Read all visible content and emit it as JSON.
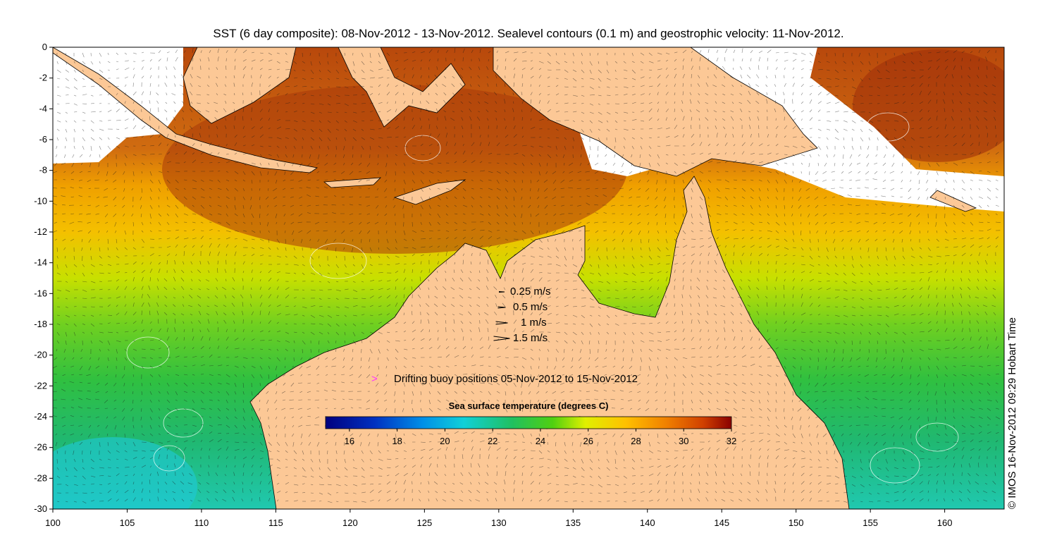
{
  "title": "SST (6 day composite): 08-Nov-2012 - 13-Nov-2012. Sealevel contours (0.1 m) and geostrophic velocity: 11-Nov-2012.",
  "x_axis": {
    "ticks": [
      "100",
      "105",
      "110",
      "115",
      "120",
      "125",
      "130",
      "135",
      "140",
      "145",
      "150",
      "155",
      "160"
    ],
    "range": [
      100,
      164
    ]
  },
  "y_axis": {
    "ticks": [
      "0",
      "-2",
      "-4",
      "-6",
      "-8",
      "-10",
      "-12",
      "-14",
      "-16",
      "-18",
      "-20",
      "-22",
      "-24",
      "-26",
      "-28",
      "-30"
    ],
    "range": [
      -30,
      0
    ]
  },
  "velocity_legend": [
    {
      "label": "0.25 m/s",
      "speed": 0.25
    },
    {
      "label": "0.5 m/s",
      "speed": 0.5
    },
    {
      "label": "1 m/s",
      "speed": 1
    },
    {
      "label": "1.5 m/s",
      "speed": 1.5
    }
  ],
  "buoy_legend": {
    "symbol": ">",
    "label": "Drifting buoy positions 05-Nov-2012 to 15-Nov-2012",
    "color": "#ff33ff"
  },
  "colorbar": {
    "title": "Sea surface temperature (degrees C)",
    "ticks": [
      "16",
      "18",
      "20",
      "22",
      "24",
      "26",
      "28",
      "30",
      "32"
    ],
    "range": [
      15,
      32
    ]
  },
  "credit": "© IMOS 16-Nov-2012 09:29 Hobart Time",
  "colors": {
    "land": "#fcc896",
    "cloud": "#ffffff",
    "sst_warm": "#b0400a",
    "sst_cool": "#10c0d0"
  }
}
